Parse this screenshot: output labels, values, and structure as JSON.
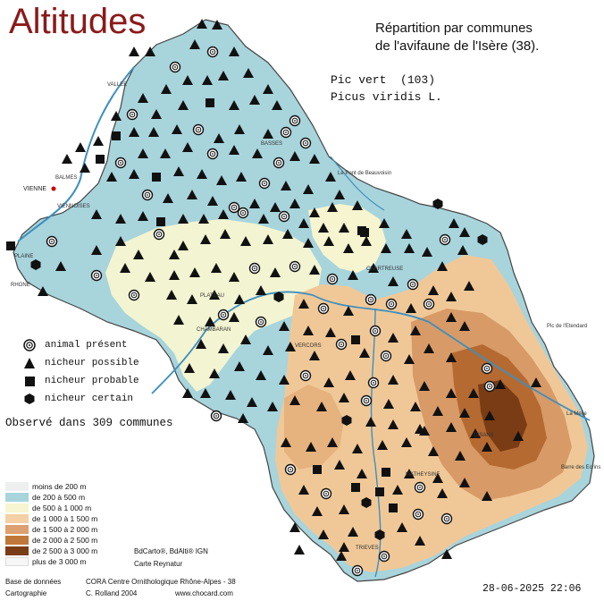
{
  "title": "Altitudes",
  "heading": {
    "line1": "Répartition par communes",
    "line2": "de l'avifaune de l'Isère (38)."
  },
  "species": {
    "line1": "Pic vert  (103)",
    "line2": "Picus viridis L."
  },
  "legend": [
    {
      "symbol": "circle-dot",
      "label": "animal présent"
    },
    {
      "symbol": "triangle",
      "label": "nicheur possible"
    },
    {
      "symbol": "square",
      "label": "nicheur probable"
    },
    {
      "symbol": "hexagon",
      "label": "nicheur certain"
    }
  ],
  "observed": "Observé dans 309 communes",
  "altitude_legend": [
    {
      "label": "moins de 200 m",
      "color": "#eef0f0"
    },
    {
      "label": "de 200 à 500 m",
      "color": "#a8d4dc"
    },
    {
      "label": "de 500 à 1 000 m",
      "color": "#f7f5d0"
    },
    {
      "label": "de 1 000 à 1 500 m",
      "color": "#f4d0a4"
    },
    {
      "label": "de 1 500 à 2 000 m",
      "color": "#dda070"
    },
    {
      "label": "de 2 000 à 2 500 m",
      "color": "#c07838"
    },
    {
      "label": "de 2 500 à 3 000 m",
      "color": "#7a3c14"
    },
    {
      "label": "plus de 3 000 m",
      "color": "#f6f6f6"
    }
  ],
  "credits": {
    "bdcarto": "BdCarto®, BdAlti® IGN",
    "carte": "Carte Reynatur",
    "base_label": "Base de données",
    "base_value": "CORA Centre Ornithologique Rhône-Alpes - 38",
    "carto_label": "Cartographie",
    "carto_value": "C. Rolland 2004",
    "site": "www.chocard.com"
  },
  "date": "28-06-2025 22:06",
  "places": {
    "vienne": "VIENNE",
    "viennoises": "VIENNOISES",
    "balmes": "BALMES",
    "vallee": "VALLEE",
    "basses": "BASSES",
    "plaine": "PLAINE",
    "rhone": "RHONE",
    "plateau": "PLATEAU",
    "chambaran": "CHAMBARAN",
    "vercors": "VERCORS",
    "chartreuse": "CHARTREUSE",
    "oisans": "OISANS",
    "trieves": "TRIEVES",
    "matheysine": "MATHEYSINE",
    "pont": "Le Pont de Beauvoisin",
    "pic_etendard": "Pic de l'Etendard",
    "meije": "La Meije",
    "ecrins": "Barre des Ecrins"
  },
  "colors": {
    "title": "#8b1a1a",
    "blue": "#a8d4dc",
    "cream": "#f7f5d0",
    "orange": "#e8b888",
    "brown": "#c07838"
  }
}
